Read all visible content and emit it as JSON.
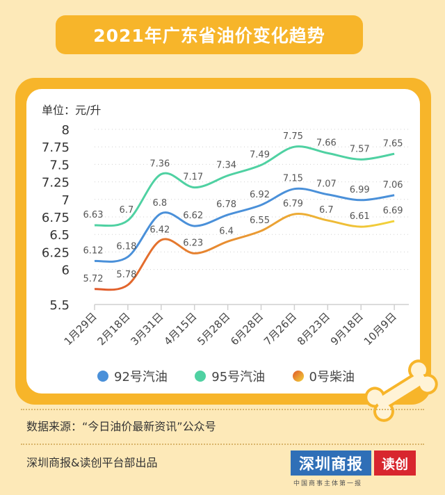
{
  "title": "2021年广东省油价变化趋势",
  "unit_label": "单位：元/升",
  "legend": {
    "items": [
      {
        "label": "92号汽油",
        "color": "#4a90d9"
      },
      {
        "label": "95号汽油",
        "color": "#4fd1a2"
      },
      {
        "label": "0号柴油",
        "color_start": "#e0582a",
        "color_end": "#f2d33a"
      }
    ]
  },
  "source": "数据来源：“今日油价最新资讯”公众号",
  "footer": "深圳商报&读创平台部出品",
  "logo": {
    "main": "深圳商报",
    "sub": "读创",
    "slogan": "中国商事主体第一报"
  },
  "chart_data": {
    "type": "line",
    "categories": [
      "1月29日",
      "2月18日",
      "3月31日",
      "4月15日",
      "5月28日",
      "6月28日",
      "7月26日",
      "8月23日",
      "9月18日",
      "10月9日"
    ],
    "ylim": [
      5.5,
      8
    ],
    "yticks": [
      "5.5",
      "6",
      "6.25",
      "6.5",
      "6.75",
      "7",
      "7.25",
      "7.5",
      "7.75",
      "8"
    ],
    "grid": true,
    "series": [
      {
        "name": "92号汽油",
        "color": "#4a90d9",
        "values": [
          6.12,
          6.18,
          6.8,
          6.62,
          6.78,
          6.92,
          7.15,
          7.07,
          6.99,
          7.06
        ],
        "labels": [
          "6.12",
          "6.18",
          "6.8",
          "6.62",
          "6.78",
          "6.92",
          "7.15",
          "7.07",
          "6.99",
          "7.06"
        ]
      },
      {
        "name": "95号汽油",
        "color": "#4fd1a2",
        "values": [
          6.63,
          6.7,
          7.36,
          7.17,
          7.34,
          7.49,
          7.75,
          7.66,
          7.57,
          7.65
        ],
        "labels": [
          "6.63",
          "6.7",
          "7.36",
          "7.17",
          "7.34",
          "7.49",
          "7.75",
          "7.66",
          "7.57",
          "7.65"
        ]
      },
      {
        "name": "0号柴油",
        "color_start": "#e0582a",
        "color_end": "#f2d33a",
        "values": [
          5.72,
          5.78,
          6.42,
          6.23,
          6.4,
          6.55,
          6.79,
          6.7,
          6.61,
          6.69
        ],
        "labels": [
          "5.72",
          "5.78",
          "6.42",
          "6.23",
          "6.4",
          "6.55",
          "6.79",
          "6.7",
          "6.61",
          "6.69"
        ]
      }
    ]
  }
}
